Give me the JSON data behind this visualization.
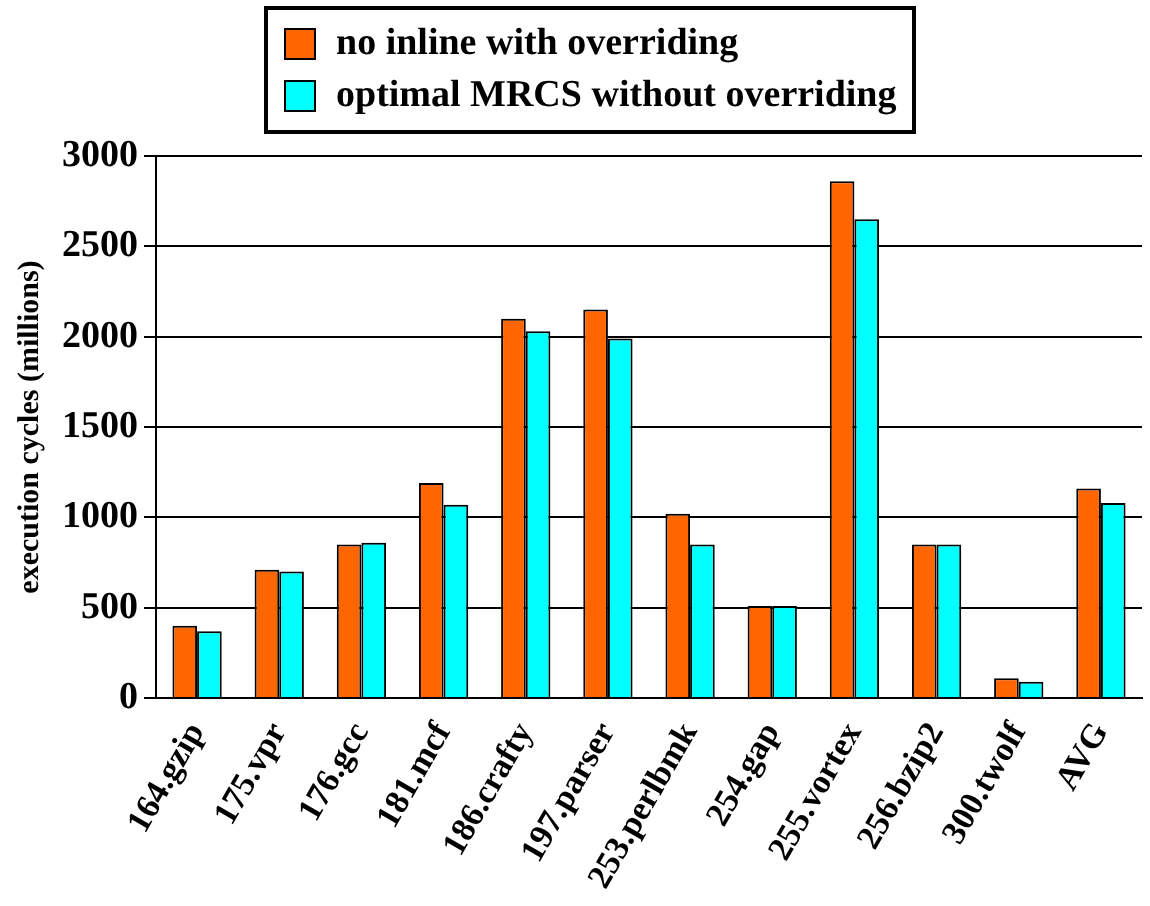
{
  "chart_data": {
    "type": "bar",
    "ylabel": "execution cycles (millions)",
    "categories": [
      "164.gzip",
      "175.vpr",
      "176.gcc",
      "181.mcf",
      "186.crafty",
      "197.parser",
      "253.perlbmk",
      "254.gap",
      "255.vortex",
      "256.bzip2",
      "300.twolf",
      "AVG"
    ],
    "series": [
      {
        "name": "no inline with overriding",
        "color": "#ff6600",
        "values": [
          400,
          710,
          850,
          1190,
          2100,
          2150,
          1020,
          510,
          2860,
          850,
          110,
          1160
        ]
      },
      {
        "name": "optimal MRCS without overriding",
        "color": "#00ffff",
        "values": [
          370,
          700,
          860,
          1070,
          2030,
          1990,
          850,
          510,
          2650,
          850,
          90,
          1080
        ]
      }
    ],
    "ylim": [
      0,
      3000
    ],
    "yticks": [
      0,
      500,
      1000,
      1500,
      2000,
      2500,
      3000
    ],
    "grid": "y",
    "legend": "top"
  }
}
